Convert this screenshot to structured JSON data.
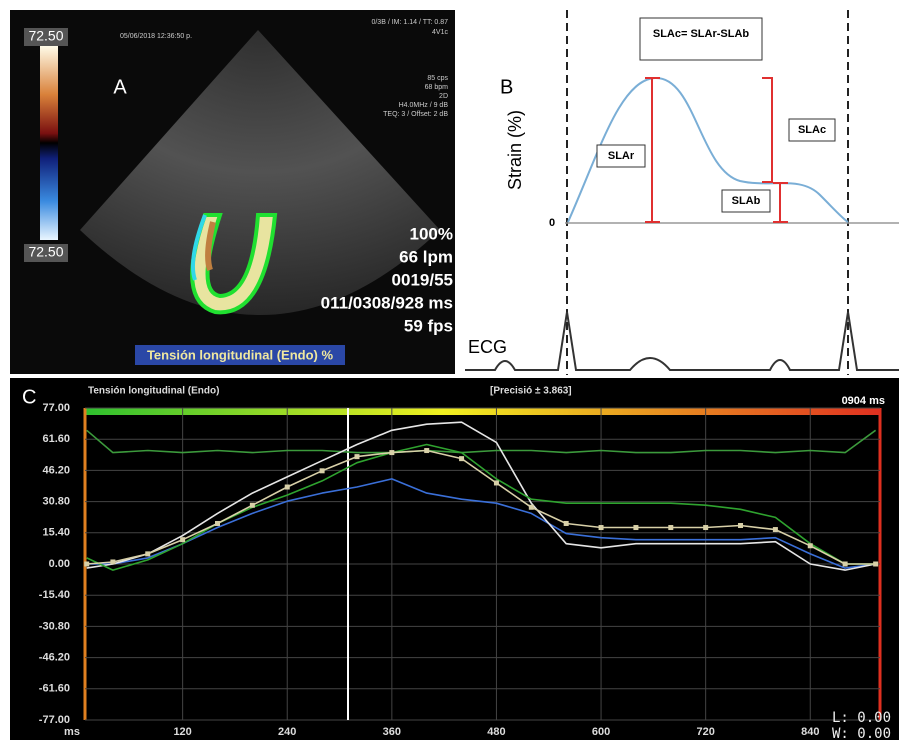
{
  "panel_a": {
    "label": "A",
    "scale_top": "72.50",
    "scale_bottom": "72.50",
    "date": "05/06/2018 12:36:50 p.",
    "probe": "0/3B / IM: 1.14 / TT: 0.87",
    "probe_model": "4V1c",
    "settings": [
      "85 cps",
      "68 bpm",
      "2D",
      "H4.0MHz / 9 dB",
      "TEQ: 3 / Offset: 2 dB"
    ],
    "readouts": [
      "100%",
      "66 lpm",
      "0019/55",
      "011/0308/928 ms",
      "59 fps"
    ],
    "caption": "Tensión longitudinal (Endo) %"
  },
  "panel_b": {
    "label": "B",
    "formula": "SLAc= SLAr-SLAb",
    "y_label": "Strain (%)",
    "zero": "0",
    "slar": "SLAr",
    "slac": "SLAc",
    "slab": "SLAb",
    "ecg": "ECG"
  },
  "chart_data": {
    "type": "line",
    "label": "C",
    "title": "Tensión longitudinal (Endo)",
    "subtitle": "[Precisió ± 3.863]",
    "time": "0904 ms",
    "x_label": "ms",
    "overlay": [
      "L: 0.00",
      "W: 0.00"
    ],
    "x": [
      10,
      40,
      80,
      120,
      160,
      200,
      240,
      280,
      320,
      360,
      400,
      440,
      480,
      520,
      560,
      600,
      640,
      680,
      720,
      760,
      800,
      840,
      880,
      915
    ],
    "xlim": [
      8,
      920
    ],
    "xticks": [
      120,
      240,
      360,
      480,
      600,
      720,
      840
    ],
    "ylim": [
      -77,
      77
    ],
    "yticks": [
      {
        "value": 77,
        "label": "77.00"
      },
      {
        "value": 61.6,
        "label": "61.60"
      },
      {
        "value": 46.2,
        "label": "46.20"
      },
      {
        "value": 30.8,
        "label": "30.80"
      },
      {
        "value": 15.4,
        "label": "15.40"
      },
      {
        "value": 0,
        "label": "0.00"
      },
      {
        "value": -15.4,
        "label": "-15.40"
      },
      {
        "value": -30.8,
        "label": "-30.80"
      },
      {
        "value": -46.2,
        "label": "-46.20"
      },
      {
        "value": -61.6,
        "label": "-61.60"
      },
      {
        "value": -77,
        "label": "-77.00"
      }
    ],
    "grid": true,
    "series": [
      {
        "color": "#3c9a3c",
        "values": [
          66,
          55,
          56,
          55,
          56,
          55,
          56,
          56,
          55,
          55,
          56,
          55,
          56,
          56,
          55,
          56,
          55,
          55,
          56,
          56,
          55,
          56,
          55,
          66
        ]
      },
      {
        "color": "#3a6fd8",
        "values": [
          0,
          0,
          3,
          10,
          18,
          25,
          31,
          35,
          38,
          42,
          35,
          32,
          30,
          25,
          15,
          13,
          12,
          12,
          12,
          12,
          13,
          5,
          -2,
          0
        ]
      },
      {
        "color": "#e6e6e6",
        "values": [
          -2,
          0,
          5,
          14,
          25,
          35,
          43,
          51,
          59,
          66,
          69,
          70,
          60,
          30,
          10,
          8,
          10,
          10,
          10,
          10,
          11,
          0,
          -3,
          0
        ]
      },
      {
        "color": "#2fa32f",
        "values": [
          3,
          -3,
          2,
          10,
          20,
          28,
          34,
          41,
          50,
          55,
          59,
          55,
          42,
          32,
          30,
          30,
          30,
          30,
          29,
          27,
          23,
          10,
          0,
          0
        ]
      },
      {
        "color": "#d8d0a8",
        "markers": true,
        "values": [
          0,
          1,
          5,
          12,
          20,
          29,
          38,
          46,
          53,
          55,
          56,
          52,
          40,
          28,
          20,
          18,
          18,
          18,
          18,
          19,
          17,
          9,
          0,
          0
        ]
      }
    ]
  }
}
